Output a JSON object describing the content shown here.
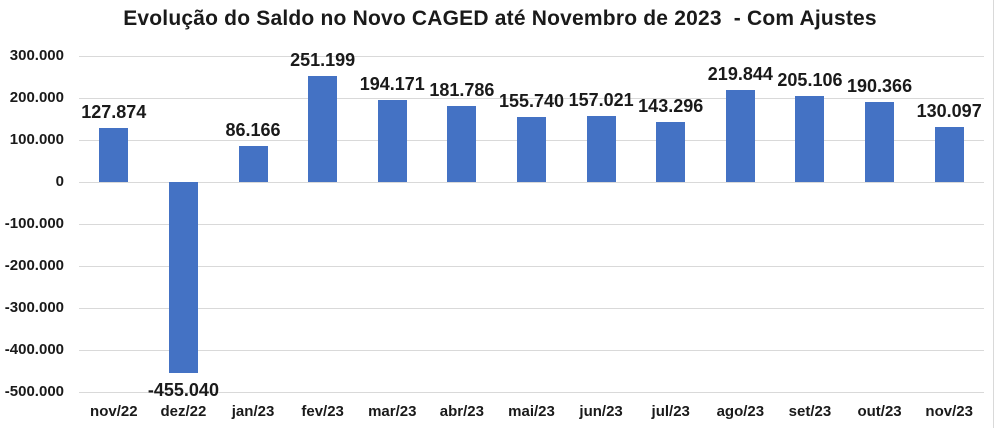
{
  "chart_data": {
    "type": "bar",
    "title": "Evolução do Saldo no Novo CAGED até Novembro de 2023  - Com Ajustes",
    "categories": [
      "nov/22",
      "dez/22",
      "jan/23",
      "fev/23",
      "mar/23",
      "abr/23",
      "mai/23",
      "jun/23",
      "jul/23",
      "ago/23",
      "set/23",
      "out/23",
      "nov/23"
    ],
    "values": [
      127874,
      -455040,
      86166,
      251199,
      194171,
      181786,
      155740,
      157021,
      143296,
      219844,
      205106,
      190366,
      130097
    ],
    "value_labels": [
      "127.874",
      "-455.040",
      "86.166",
      "251.199",
      "194.171",
      "181.786",
      "155.740",
      "157.021",
      "143.296",
      "219.844",
      "205.106",
      "190.366",
      "130.097"
    ],
    "xlabel": "",
    "ylabel": "",
    "ylim": [
      -500000,
      300000
    ],
    "ytick_values": [
      300000,
      200000,
      100000,
      0,
      -100000,
      -200000,
      -300000,
      -400000,
      -500000
    ],
    "ytick_labels": [
      "300.000",
      "200.000",
      "100.000",
      "0",
      "-100.000",
      "-200.000",
      "-300.000",
      "-400.000",
      "-500.000"
    ],
    "grid": true,
    "legend": false,
    "bar_color": "#4472C4",
    "gridline_color": "#D9D9D9",
    "text_color": "#1A1A1A"
  }
}
